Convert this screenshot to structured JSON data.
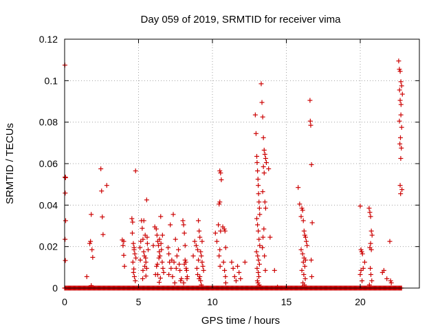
{
  "chart_data": {
    "type": "scatter",
    "title": "Day 059 of 2019, SRMTID for receiver vima",
    "xlabel": "GPS time / hours",
    "ylabel": "SRMTID / TECUs",
    "xlim": [
      0,
      24
    ],
    "ylim": [
      0,
      0.12
    ],
    "xticks": [
      0,
      5,
      10,
      15,
      20
    ],
    "xtick_labels": [
      "0",
      "5",
      "10",
      "15",
      "20"
    ],
    "yticks": [
      0,
      0.02,
      0.04,
      0.06,
      0.08,
      0.1,
      0.12
    ],
    "ytick_labels": [
      "0",
      "0.02",
      "0.04",
      "0.06",
      "0.08",
      "0.1",
      "0.12"
    ],
    "grid": true,
    "marker": "+",
    "colors": {
      "points": "#cc0000",
      "grid": "#a0a0a0",
      "axis": "#000000"
    },
    "zero_band": {
      "x_start": 0.0,
      "x_end": 22.8,
      "step": 0.05,
      "y": 0
    },
    "series": [
      {
        "name": "SRMTID",
        "x": [
          0.02,
          0.03,
          0.05,
          0.06,
          0.04,
          0.07,
          0.03,
          0.05,
          1.5,
          1.7,
          1.75,
          1.8,
          1.85,
          1.9,
          1.8,
          2.45,
          2.5,
          2.55,
          2.6,
          2.85,
          3.9,
          3.95,
          4.0,
          4.05,
          4.0,
          4.55,
          4.6,
          4.65,
          4.7,
          4.75,
          4.8,
          4.62,
          4.68,
          4.72,
          4.78,
          4.58,
          4.82,
          4.7,
          4.66,
          5.1,
          5.15,
          5.2,
          5.25,
          5.3,
          5.35,
          5.4,
          5.45,
          5.5,
          5.55,
          5.6,
          5.65,
          5.3,
          5.42,
          5.5,
          5.58,
          5.12,
          5.28,
          5.36,
          5.48,
          5.55,
          6.0,
          6.1,
          6.2,
          6.25,
          6.3,
          6.35,
          6.4,
          6.45,
          6.5,
          6.6,
          6.65,
          6.7,
          6.3,
          6.42,
          6.55,
          6.22,
          6.38,
          6.48,
          6.62,
          6.15,
          6.28,
          6.4,
          6.52,
          7.0,
          7.05,
          7.1,
          7.15,
          7.2,
          7.3,
          7.35,
          7.4,
          7.5,
          7.6,
          7.7,
          7.8,
          7.9,
          7.05,
          7.25,
          7.45,
          7.55,
          7.75,
          7.85,
          8.0,
          8.05,
          8.1,
          8.15,
          8.2,
          8.25,
          8.3,
          8.1,
          8.15,
          8.22,
          8.28,
          8.05,
          8.7,
          8.8,
          8.9,
          9.0,
          9.05,
          9.1,
          9.15,
          9.2,
          9.25,
          9.3,
          9.35,
          9.4,
          9.0,
          9.1,
          9.2,
          9.3,
          8.95,
          9.25,
          9.05,
          9.15,
          10.2,
          10.3,
          10.4,
          10.5,
          10.55,
          10.6,
          10.5,
          10.45,
          10.55,
          10.5,
          10.45,
          10.52,
          10.7,
          10.8,
          10.85,
          10.9,
          10.75,
          10.82,
          10.88,
          10.9,
          11.3,
          11.4,
          11.5,
          11.6,
          11.7,
          11.8,
          11.9,
          12.2,
          12.9,
          12.95,
          13.0,
          13.02,
          13.05,
          13.08,
          13.1,
          13.12,
          13.15,
          13.18,
          13.2,
          13.0,
          13.05,
          13.1,
          13.15,
          13.2,
          12.98,
          13.06,
          13.12,
          13.18,
          13.02,
          13.1,
          13.14,
          13.04,
          13.08,
          13.16,
          13.22,
          13.3,
          13.35,
          13.4,
          13.45,
          13.5,
          13.55,
          13.6,
          13.65,
          13.45,
          13.5,
          13.4,
          13.55,
          13.6,
          13.48,
          13.42,
          13.38,
          13.52,
          13.58,
          13.8,
          13.9,
          14.2,
          14.4,
          15.8,
          15.9,
          16.0,
          16.05,
          16.1,
          16.15,
          16.2,
          16.25,
          16.3,
          16.35,
          16.4,
          16.0,
          16.1,
          16.2,
          16.3,
          16.15,
          16.25,
          16.05,
          16.18,
          16.28,
          16.12,
          16.22,
          16.08,
          16.6,
          16.65,
          16.7,
          16.75,
          16.62,
          16.68,
          16.72,
          20.0,
          20.05,
          20.1,
          20.15,
          20.2,
          20.05,
          20.0,
          20.12,
          20.3,
          20.6,
          20.65,
          20.7,
          20.75,
          20.8,
          20.7,
          20.65,
          20.75,
          20.68,
          20.72,
          20.78,
          20.62,
          21.5,
          21.6,
          21.8,
          22.0,
          22.05,
          22.1,
          22.6,
          22.65,
          22.7,
          22.75,
          22.8,
          22.85,
          22.7,
          22.75,
          22.65,
          22.8,
          22.72,
          22.68,
          22.78,
          22.74,
          22.7,
          22.82,
          22.66,
          22.76,
          22.73
        ],
        "y": [
          0.1075,
          0.0535,
          0.0535,
          0.0532,
          0.0458,
          0.0325,
          0.0235,
          0.0133,
          0.0055,
          0.0215,
          0.0225,
          0.0355,
          0.0185,
          0.0148,
          0.0012,
          0.0575,
          0.0468,
          0.0343,
          0.0258,
          0.0495,
          0.0232,
          0.0205,
          0.0158,
          0.0105,
          0.0225,
          0.0335,
          0.0318,
          0.0215,
          0.0185,
          0.0165,
          0.0565,
          0.0125,
          0.0092,
          0.0055,
          0.0035,
          0.0265,
          0.0145,
          0.0195,
          0.0075,
          0.0195,
          0.0225,
          0.0325,
          0.0288,
          0.0235,
          0.0175,
          0.0155,
          0.0255,
          0.0125,
          0.0425,
          0.0215,
          0.0185,
          0.0085,
          0.0105,
          0.0058,
          0.0245,
          0.0135,
          0.0045,
          0.0325,
          0.0145,
          0.0095,
          0.0205,
          0.0295,
          0.0285,
          0.0255,
          0.0225,
          0.0205,
          0.0175,
          0.0155,
          0.0345,
          0.0125,
          0.0095,
          0.0075,
          0.0065,
          0.0235,
          0.0185,
          0.0105,
          0.0145,
          0.0048,
          0.0255,
          0.0065,
          0.0115,
          0.0028,
          0.0215,
          0.0195,
          0.0165,
          0.0125,
          0.0305,
          0.0095,
          0.0055,
          0.0355,
          0.0125,
          0.0235,
          0.0155,
          0.0185,
          0.0085,
          0.0045,
          0.0065,
          0.0135,
          0.0025,
          0.0095,
          0.0115,
          0.0035,
          0.0325,
          0.0305,
          0.0265,
          0.0205,
          0.0125,
          0.0085,
          0.0055,
          0.0115,
          0.0135,
          0.0095,
          0.0045,
          0.0025,
          0.0155,
          0.0225,
          0.0205,
          0.0185,
          0.0325,
          0.0275,
          0.0245,
          0.0175,
          0.0155,
          0.0125,
          0.0105,
          0.0085,
          0.0065,
          0.0045,
          0.0035,
          0.0225,
          0.0095,
          0.0015,
          0.0135,
          0.0055,
          0.0265,
          0.0225,
          0.0305,
          0.0565,
          0.0555,
          0.0522,
          0.0415,
          0.0405,
          0.0275,
          0.0185,
          0.0155,
          0.0105,
          0.0295,
          0.0285,
          0.0275,
          0.0195,
          0.0125,
          0.0085,
          0.0055,
          0.0025,
          0.0125,
          0.0095,
          0.0055,
          0.0035,
          0.0105,
          0.0075,
          0.0045,
          0.0125,
          0.0835,
          0.0745,
          0.0635,
          0.0605,
          0.0565,
          0.0525,
          0.0495,
          0.0455,
          0.0415,
          0.0385,
          0.0355,
          0.0335,
          0.0305,
          0.0275,
          0.0235,
          0.0205,
          0.0175,
          0.0155,
          0.0135,
          0.0115,
          0.0095,
          0.0075,
          0.0055,
          0.0035,
          0.0025,
          0.0015,
          0.0005,
          0.0985,
          0.0895,
          0.0825,
          0.0725,
          0.0665,
          0.0645,
          0.0625,
          0.0605,
          0.0585,
          0.0555,
          0.0465,
          0.0415,
          0.0385,
          0.0285,
          0.0245,
          0.0195,
          0.0155,
          0.0085,
          0.0575,
          0.0245,
          0.0085,
          0.0005,
          0.0485,
          0.0405,
          0.0345,
          0.0385,
          0.0375,
          0.0325,
          0.0275,
          0.0255,
          0.0245,
          0.0225,
          0.0205,
          0.0185,
          0.0165,
          0.0145,
          0.0135,
          0.0125,
          0.0105,
          0.0085,
          0.0065,
          0.0045,
          0.0025,
          0.0015,
          0.0005,
          0.0905,
          0.0785,
          0.0595,
          0.0315,
          0.0805,
          0.0135,
          0.0055,
          0.0395,
          0.0185,
          0.0175,
          0.0165,
          0.0095,
          0.0085,
          0.0065,
          0.0035,
          0.0125,
          0.0385,
          0.0365,
          0.0345,
          0.0275,
          0.0255,
          0.0215,
          0.0195,
          0.0185,
          0.0095,
          0.0065,
          0.0035,
          0.0015,
          0.0075,
          0.0085,
          0.0045,
          0.0225,
          0.0035,
          0.0025,
          0.1095,
          0.1055,
          0.1045,
          0.0995,
          0.0975,
          0.0935,
          0.0905,
          0.0835,
          0.0805,
          0.0775,
          0.0725,
          0.0695,
          0.0675,
          0.0625,
          0.0495,
          0.0475,
          0.0955,
          0.0885,
          0.0455
        ]
      }
    ]
  }
}
